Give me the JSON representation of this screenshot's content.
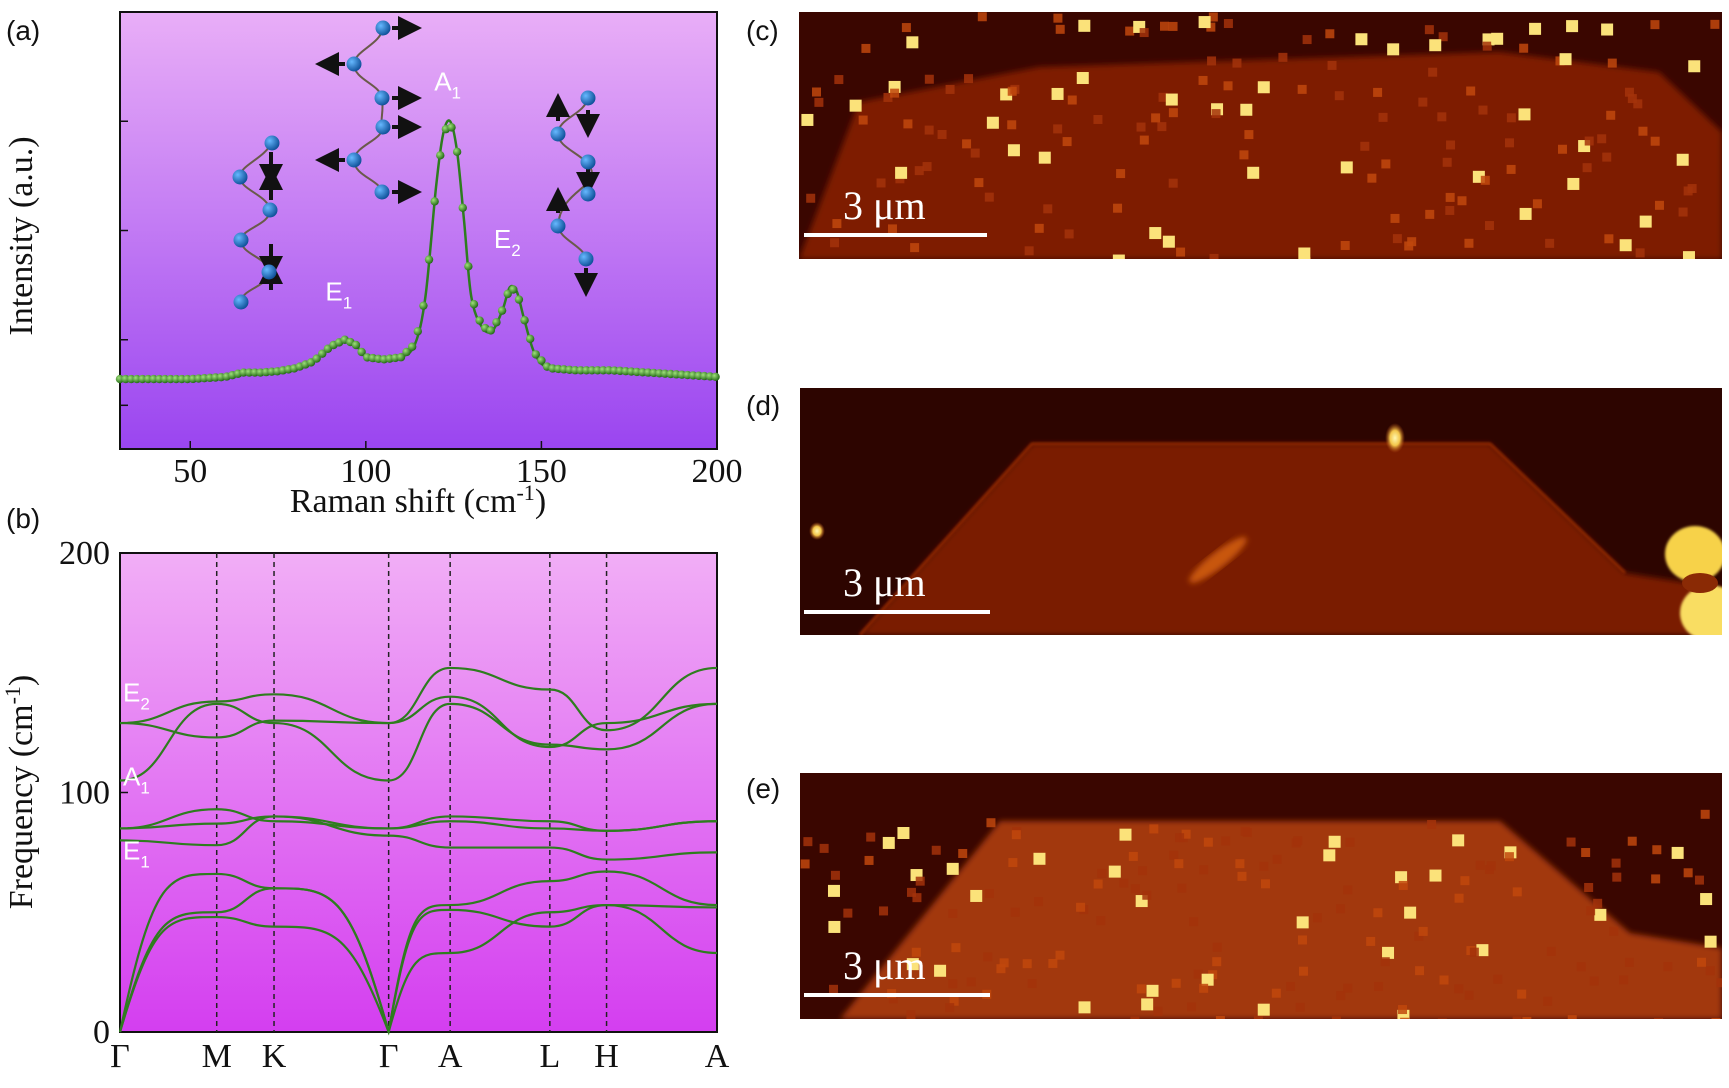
{
  "chart_data": [
    {
      "panel": "(a)",
      "type": "scatter",
      "xlabel": "Raman shift (cm",
      "xlabel_sup": "-1",
      "xlabel_end": ")",
      "ylabel": "Intensity (a.u.)",
      "xlim": [
        30,
        200
      ],
      "ylim": [
        0,
        1
      ],
      "xticks": [
        50,
        100,
        150,
        200
      ],
      "grid": false,
      "background": "gradient pink-to-violet",
      "series": [
        {
          "marker": "green spheres with connecting line",
          "color": "#2e7d1e",
          "points": [
            [
              30,
              0.16
            ],
            [
              40,
              0.16
            ],
            [
              50,
              0.16
            ],
            [
              60,
              0.165
            ],
            [
              65,
              0.175
            ],
            [
              70,
              0.175
            ],
            [
              75,
              0.178
            ],
            [
              80,
              0.185
            ],
            [
              85,
              0.2
            ],
            [
              90,
              0.235
            ],
            [
              94,
              0.25
            ],
            [
              97,
              0.24
            ],
            [
              100,
              0.21
            ],
            [
              105,
              0.205
            ],
            [
              110,
              0.21
            ],
            [
              114,
              0.24
            ],
            [
              117,
              0.35
            ],
            [
              120,
              0.6
            ],
            [
              122,
              0.72
            ],
            [
              124,
              0.75
            ],
            [
              126,
              0.68
            ],
            [
              128,
              0.52
            ],
            [
              130,
              0.35
            ],
            [
              133,
              0.28
            ],
            [
              136,
              0.27
            ],
            [
              139,
              0.32
            ],
            [
              141,
              0.37
            ],
            [
              143,
              0.36
            ],
            [
              145,
              0.3
            ],
            [
              148,
              0.22
            ],
            [
              152,
              0.185
            ],
            [
              160,
              0.18
            ],
            [
              170,
              0.18
            ],
            [
              180,
              0.175
            ],
            [
              190,
              0.17
            ],
            [
              200,
              0.165
            ]
          ]
        }
      ],
      "annotations": [
        {
          "text": "E",
          "sub": "1",
          "x": 94
        },
        {
          "text": "A",
          "sub": "1",
          "x": 125
        },
        {
          "text": "E",
          "sub": "2",
          "x": 142
        }
      ],
      "insets": [
        "E1-mode-atom-chain-icon",
        "A1-mode-atom-chain-icon",
        "E2-mode-atom-chain-icon"
      ]
    },
    {
      "panel": "(b)",
      "type": "line",
      "ylabel": "Frequency (cm",
      "ylabel_sup": "-1",
      "ylabel_end": ")",
      "ylim": [
        0,
        200
      ],
      "yticks": [
        0,
        100,
        200
      ],
      "x_categories": [
        "Γ",
        "M",
        "K",
        "Γ",
        "A",
        "L",
        "H",
        "A"
      ],
      "x_positions": [
        0,
        0.162,
        0.258,
        0.45,
        0.553,
        0.72,
        0.815,
        1.0
      ],
      "color": "#2e7d1e",
      "series": [
        {
          "name": "",
          "values": [
            0,
            48,
            44,
            0,
            33,
            50,
            53,
            33
          ]
        },
        {
          "name": "",
          "values": [
            0,
            50,
            60,
            0,
            51,
            44,
            53,
            52
          ]
        },
        {
          "name": "",
          "values": [
            0,
            66,
            60,
            0,
            53,
            63,
            67,
            53
          ]
        },
        {
          "name": "",
          "values": [
            80,
            78,
            90,
            82,
            77,
            77,
            72,
            75
          ]
        },
        {
          "name": "",
          "values": [
            85,
            87,
            90,
            85,
            90,
            88,
            84,
            88
          ]
        },
        {
          "name": "",
          "values": [
            85,
            93,
            88,
            85,
            88,
            85,
            84,
            88
          ]
        },
        {
          "name": "",
          "values": [
            105,
            137,
            129,
            105,
            137,
            120,
            118,
            137
          ]
        },
        {
          "name": "",
          "values": [
            129,
            123,
            130,
            129,
            140,
            119,
            129,
            137
          ]
        },
        {
          "name": "",
          "values": [
            129,
            138,
            141,
            129,
            152,
            143,
            126,
            152
          ]
        }
      ],
      "annotations": [
        {
          "text": "E",
          "sub": "2",
          "y": 138
        },
        {
          "text": "A",
          "sub": "1",
          "y": 103
        },
        {
          "text": "E",
          "sub": "1",
          "y": 72
        }
      ]
    }
  ],
  "panels": {
    "a": "(a)",
    "b": "(b)",
    "c": "(c)",
    "d": "(d)",
    "e": "(e)"
  },
  "maps": [
    {
      "id": "c",
      "scalebar": "3 μm",
      "colormap": "dark-red to yellow (hot)"
    },
    {
      "id": "d",
      "scalebar": "3 μm",
      "colormap": "dark-red to yellow (hot)"
    },
    {
      "id": "e",
      "scalebar": "3 μm",
      "colormap": "dark-red to yellow (hot)"
    }
  ]
}
